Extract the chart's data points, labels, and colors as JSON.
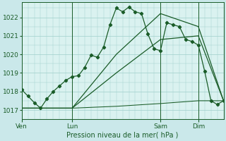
{
  "background_color": "#cae8ea",
  "plot_bg_color": "#daf2f0",
  "grid_color": "#9ecfca",
  "line_color": "#1a5c28",
  "title": "Pression niveau de la mer( hPa )",
  "ylim": [
    1016.5,
    1022.8
  ],
  "yticks": [
    1017,
    1018,
    1019,
    1020,
    1021,
    1022
  ],
  "day_labels": [
    "Ven",
    "Lun",
    "Sam",
    "Dim"
  ],
  "day_positions": [
    0,
    8,
    22,
    28
  ],
  "xlim": [
    0,
    32
  ],
  "series1_x": [
    0,
    1,
    2,
    3,
    4,
    5,
    6,
    7,
    8,
    9,
    10,
    11,
    12,
    13,
    14,
    15,
    16,
    17,
    18,
    19,
    20,
    21,
    22,
    23,
    24,
    25,
    26,
    27,
    28,
    29,
    30,
    31,
    32
  ],
  "series1_y": [
    1018.1,
    1017.75,
    1017.4,
    1017.1,
    1017.6,
    1018.0,
    1018.3,
    1018.6,
    1018.8,
    1018.85,
    1019.3,
    1019.95,
    1019.85,
    1020.4,
    1021.6,
    1022.5,
    1022.3,
    1022.55,
    1022.3,
    1022.2,
    1021.1,
    1020.3,
    1020.2,
    1021.7,
    1021.6,
    1021.5,
    1020.8,
    1020.7,
    1020.5,
    1019.1,
    1017.5,
    1017.3,
    1017.5
  ],
  "series2_x": [
    0,
    8,
    15,
    22,
    28,
    32
  ],
  "series2_y": [
    1017.1,
    1017.1,
    1020.0,
    1022.2,
    1021.5,
    1017.5
  ],
  "series3_x": [
    0,
    8,
    15,
    22,
    28,
    32
  ],
  "series3_y": [
    1017.1,
    1017.1,
    1019.0,
    1020.8,
    1021.0,
    1017.5
  ],
  "series4_x": [
    0,
    8,
    15,
    22,
    28,
    32
  ],
  "series4_y": [
    1017.1,
    1017.1,
    1017.2,
    1017.35,
    1017.5,
    1017.5
  ],
  "minor_xticks_count": 32,
  "title_fontsize": 7,
  "tick_labelsize": 6.5
}
